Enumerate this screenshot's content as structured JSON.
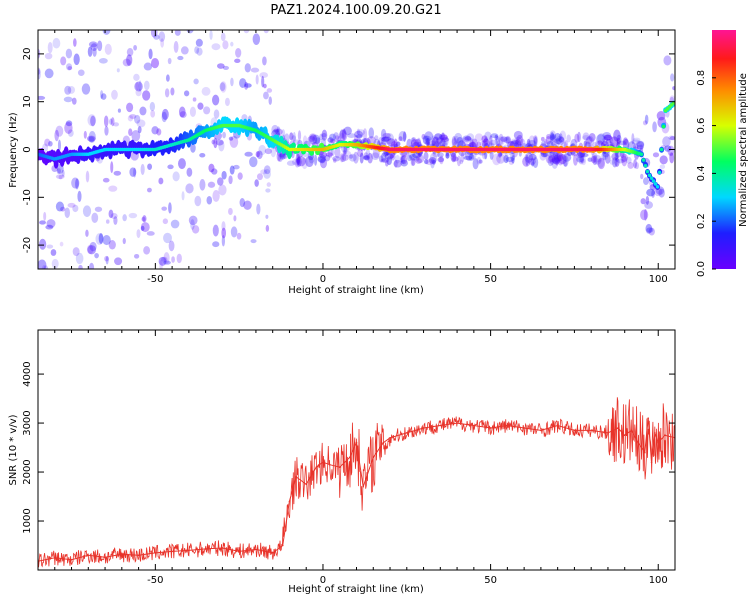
{
  "title": "PAZ1.2024.100.09.20.G21",
  "colors": {
    "snr_line": "#e8332a",
    "colorbar": [
      "#6a00ff",
      "#1e1eff",
      "#00d8ff",
      "#00ff60",
      "#d8ff00",
      "#ff8a00",
      "#ff1a1a",
      "#ff1493"
    ]
  },
  "chart_data": [
    {
      "type": "heatmap",
      "xlabel": "Height of straight line (km)",
      "ylabel": "Frequency (Hz)",
      "xlim": [
        -85,
        105
      ],
      "ylim": [
        -25,
        25
      ],
      "xticks": [
        -50,
        0,
        50,
        100
      ],
      "yticks": [
        -20,
        -10,
        0,
        10,
        20
      ],
      "colorbar": {
        "label": "Normalized spectral amplitude",
        "range": [
          0,
          1
        ],
        "ticks": [
          "0.0",
          "0.2",
          "0.4",
          "0.6",
          "0.8"
        ]
      },
      "ridge": {
        "height_km": [
          -85,
          -80,
          -75,
          -70,
          -65,
          -60,
          -55,
          -50,
          -45,
          -40,
          -35,
          -30,
          -25,
          -20,
          -15,
          -10,
          -5,
          0,
          5,
          10,
          15,
          20,
          25,
          30,
          40,
          50,
          60,
          70,
          80,
          85,
          90,
          95,
          97,
          100,
          102,
          105
        ],
        "freq_hz": [
          -1,
          -2,
          -1,
          -1,
          0,
          0,
          0,
          0,
          1,
          2,
          4,
          5,
          5,
          4,
          2,
          0,
          0,
          0,
          1,
          1,
          0.5,
          0,
          0,
          0,
          0,
          0,
          0,
          0,
          0,
          0,
          0,
          -1,
          -5,
          -8,
          8,
          10
        ],
        "amplitude": [
          0.2,
          0.25,
          0.25,
          0.3,
          0.3,
          0.3,
          0.3,
          0.35,
          0.35,
          0.4,
          0.45,
          0.5,
          0.5,
          0.45,
          0.5,
          0.6,
          0.65,
          0.7,
          0.6,
          0.7,
          0.85,
          0.95,
          0.95,
          0.95,
          0.95,
          0.95,
          0.95,
          0.95,
          0.95,
          0.8,
          0.6,
          0.4,
          0.35,
          0.3,
          0.5,
          0.5
        ]
      }
    },
    {
      "type": "line",
      "xlabel": "Height of straight line (km)",
      "ylabel": "SNR (10 * v/v)",
      "xlim": [
        -85,
        105
      ],
      "ylim": [
        0,
        4900
      ],
      "xticks": [
        -50,
        0,
        50,
        100
      ],
      "yticks": [
        1000,
        2000,
        3000,
        4000
      ],
      "series": [
        {
          "x": [
            -85,
            -80,
            -75,
            -70,
            -65,
            -60,
            -55,
            -50,
            -45,
            -40,
            -35,
            -30,
            -25,
            -20,
            -15,
            -12,
            -10,
            -8,
            -5,
            -2,
            0,
            2,
            5,
            8,
            10,
            12,
            15,
            18,
            20,
            25,
            30,
            35,
            40,
            45,
            50,
            55,
            60,
            65,
            70,
            75,
            80,
            85,
            88,
            90,
            92,
            94,
            96,
            97,
            98,
            99,
            100,
            102,
            105
          ],
          "y": [
            180,
            250,
            210,
            300,
            260,
            320,
            300,
            350,
            380,
            400,
            430,
            450,
            380,
            420,
            350,
            500,
            1400,
            1900,
            1750,
            2100,
            2200,
            2150,
            2100,
            2300,
            2600,
            1700,
            2300,
            2600,
            2700,
            2800,
            2900,
            2950,
            3000,
            2950,
            2900,
            2950,
            2900,
            2850,
            2950,
            2850,
            2850,
            2800,
            2900,
            2750,
            2850,
            2600,
            2400,
            3100,
            2200,
            2800,
            2600,
            2750,
            2700
          ]
        }
      ]
    }
  ]
}
